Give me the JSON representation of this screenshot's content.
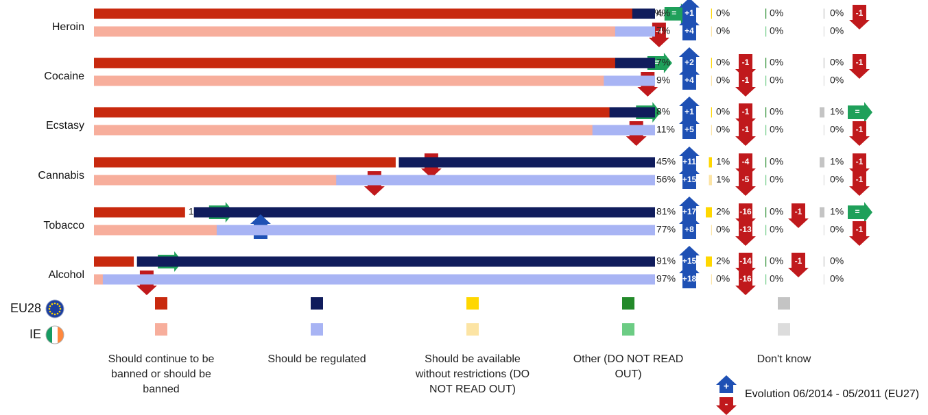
{
  "chart_data": {
    "type": "bar",
    "orientation": "horizontal-stacked",
    "categories": [
      "Heroin",
      "Cocaine",
      "Ecstasy",
      "Cannabis",
      "Tobacco",
      "Alcohol"
    ],
    "groups": [
      {
        "name": "EU28",
        "flag": "eu-flag-icon"
      },
      {
        "name": "IE",
        "flag": "ireland-flag-icon"
      }
    ],
    "series": [
      {
        "name": "Should continue to be banned or should be banned",
        "colors": {
          "EU28": "#C8290E",
          "IE": "#F7AE9C"
        },
        "values": {
          "EU28": [
            96,
            93,
            91,
            53,
            16,
            7
          ],
          "IE": [
            93,
            91,
            89,
            43,
            23,
            3
          ]
        },
        "evolution": {
          "EU28": [
            "=",
            "=",
            "=",
            "-6",
            "=",
            "="
          ],
          "IE": [
            "-4",
            "-3",
            "-3",
            "-9",
            "+6",
            "-2"
          ]
        }
      },
      {
        "name": "Should be regulated",
        "colors": {
          "EU28": "#101C5C",
          "IE": "#A8B4F4"
        },
        "values": {
          "EU28": [
            4,
            7,
            8,
            45,
            81,
            91
          ],
          "IE": [
            7,
            9,
            11,
            56,
            77,
            97
          ]
        },
        "evolution": {
          "EU28": [
            "+1",
            "+2",
            "+1",
            "+11",
            "+17",
            "+15"
          ],
          "IE": [
            "+4",
            "+4",
            "+5",
            "+15",
            "+8",
            "+18"
          ]
        }
      },
      {
        "name": "Should be available without restrictions (DO NOT READ OUT)",
        "colors": {
          "EU28": "#FFD700",
          "IE": "#FCE4A4"
        },
        "values": {
          "EU28": [
            0,
            0,
            0,
            1,
            2,
            2
          ],
          "IE": [
            0,
            0,
            0,
            1,
            0,
            0
          ]
        },
        "evolution": {
          "EU28": [
            "",
            "-1",
            "-1",
            "-4",
            "-16",
            "-14"
          ],
          "IE": [
            "",
            "-1",
            "-1",
            "-5",
            "-13",
            "-16"
          ]
        }
      },
      {
        "name": "Other (DO NOT READ OUT)",
        "colors": {
          "EU28": "#238A2A",
          "IE": "#6CCC84"
        },
        "values": {
          "EU28": [
            0,
            0,
            0,
            0,
            0,
            0
          ],
          "IE": [
            0,
            0,
            0,
            0,
            0,
            0
          ]
        },
        "evolution": {
          "EU28": [
            "",
            "",
            "",
            "",
            "-1",
            "-1"
          ],
          "IE": [
            "",
            "",
            "",
            "",
            "",
            ""
          ]
        }
      },
      {
        "name": "Don't know",
        "colors": {
          "EU28": "#C4C4C4",
          "IE": "#DCDCDC"
        },
        "values": {
          "EU28": [
            0,
            0,
            1,
            1,
            1,
            0
          ],
          "IE": [
            0,
            0,
            0,
            0,
            0,
            0
          ]
        },
        "evolution": {
          "EU28": [
            "-1",
            "-1",
            "=",
            "-1",
            "=",
            ""
          ],
          "IE": [
            "",
            "",
            "-1",
            "-1",
            "-1",
            ""
          ]
        }
      }
    ],
    "arrow_colors": {
      "up": "#1E50B4",
      "down": "#C0191C",
      "equal": "#1FA05A"
    },
    "evolution_legend": {
      "plus": "+",
      "minus": "-",
      "label": "Evolution 06/2014 - 05/2011 (EU27)"
    }
  }
}
